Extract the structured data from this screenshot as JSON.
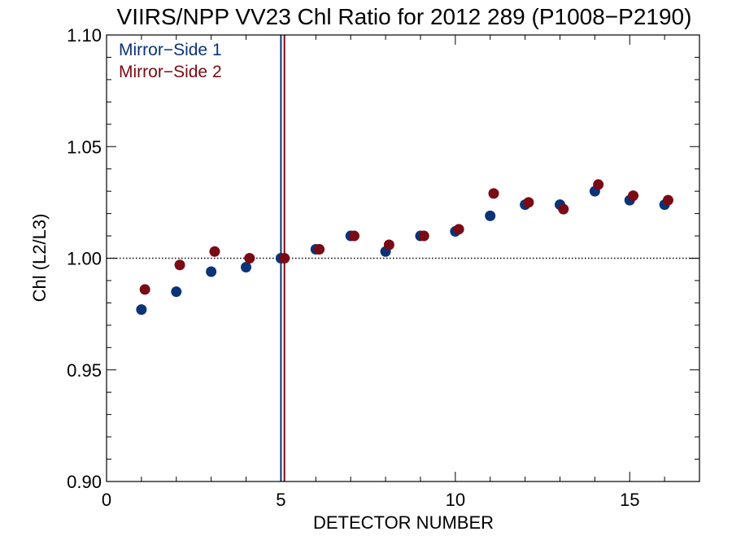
{
  "chart_data": {
    "type": "scatter",
    "title": "VIIRS/NPP VV23 Chl Ratio for 2012 289 (P1008−P2190)",
    "xlabel": "DETECTOR NUMBER",
    "ylabel": "Chl (L2/L3)",
    "xlim": [
      0,
      17
    ],
    "ylim": [
      0.9,
      1.1
    ],
    "x_ticks": [
      0,
      5,
      10,
      15
    ],
    "y_ticks": [
      0.9,
      0.95,
      1.0,
      1.05,
      1.1
    ],
    "x_tick_labels": [
      "0",
      "5",
      "10",
      "15"
    ],
    "y_tick_labels": [
      "0.90",
      "0.95",
      "1.00",
      "1.05",
      "1.10"
    ],
    "reference_line": {
      "y": 1.0,
      "style": "dotted"
    },
    "vertical_lines": [
      {
        "x": 5.0,
        "series": "Mirror−Side 1"
      },
      {
        "x": 5.1,
        "series": "Mirror−Side 2"
      }
    ],
    "legend_position": "top-left",
    "series": [
      {
        "name": "Mirror−Side 1",
        "color": "#0a3478",
        "x": [
          1,
          2,
          3,
          4,
          5,
          6,
          7,
          8,
          9,
          10,
          11,
          12,
          13,
          14,
          15,
          16
        ],
        "values": [
          0.977,
          0.985,
          0.994,
          0.996,
          1.0,
          1.004,
          1.01,
          1.003,
          1.01,
          1.012,
          1.019,
          1.024,
          1.024,
          1.03,
          1.026,
          1.024
        ]
      },
      {
        "name": "Mirror−Side 2",
        "color": "#7a0a14",
        "x": [
          1.1,
          2.1,
          3.1,
          4.1,
          5.1,
          6.1,
          7.1,
          8.1,
          9.1,
          10.1,
          11.1,
          12.1,
          13.1,
          14.1,
          15.1,
          16.1
        ],
        "values": [
          0.986,
          0.997,
          1.003,
          1.0,
          1.0,
          1.004,
          1.01,
          1.006,
          1.01,
          1.013,
          1.029,
          1.025,
          1.022,
          1.033,
          1.028,
          1.026
        ]
      }
    ]
  }
}
